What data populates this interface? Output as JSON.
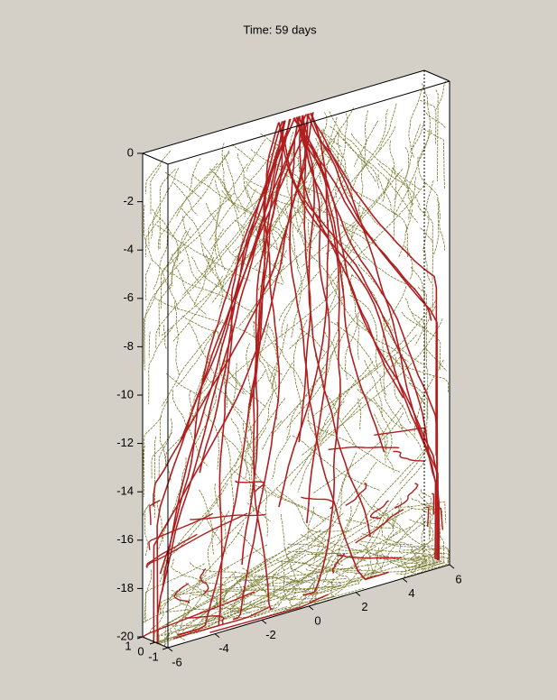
{
  "chart_data": {
    "type": "line3d",
    "title": "Time: 59 days",
    "xlim": [
      -6,
      6
    ],
    "xticks": [
      -6,
      -4,
      -2,
      0,
      2,
      4,
      6
    ],
    "ylim": [
      -1,
      1
    ],
    "yticks": [
      -1,
      0,
      1
    ],
    "zlim": [
      -20,
      0
    ],
    "zticks": [
      0,
      -2,
      -4,
      -6,
      -8,
      -10,
      -12,
      -14,
      -16,
      -18,
      -20
    ],
    "colors": [
      "#b01e1e",
      "#7a7a30"
    ]
  }
}
